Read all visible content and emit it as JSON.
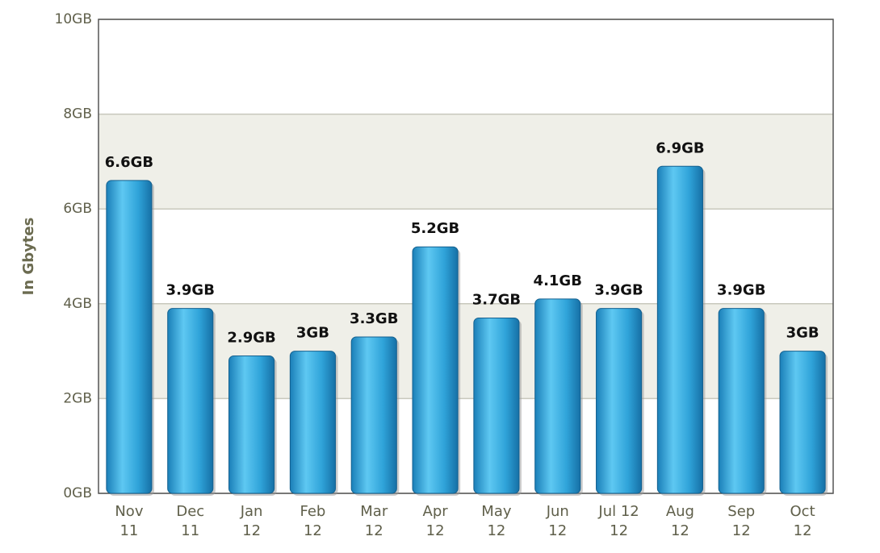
{
  "chart_data": {
    "type": "bar",
    "y_axis_label": "In Gbytes",
    "categories": [
      [
        "Nov",
        "11"
      ],
      [
        "Dec",
        "11"
      ],
      [
        "Jan",
        "12"
      ],
      [
        "Feb",
        "12"
      ],
      [
        "Mar",
        "12"
      ],
      [
        "Apr",
        "12"
      ],
      [
        "May",
        "12"
      ],
      [
        "Jun",
        "12"
      ],
      [
        "Jul 12",
        "12"
      ],
      [
        "Aug",
        "12"
      ],
      [
        "Sep",
        "12"
      ],
      [
        "Oct",
        "12"
      ]
    ],
    "values": [
      6.6,
      3.9,
      2.9,
      3,
      3.3,
      5.2,
      3.7,
      4.1,
      3.9,
      6.9,
      3.9,
      3
    ],
    "value_labels": [
      "6.6GB",
      "3.9GB",
      "2.9GB",
      "3GB",
      "3.3GB",
      "5.2GB",
      "3.7GB",
      "4.1GB",
      "3.9GB",
      "6.9GB",
      "3.9GB",
      "3GB"
    ],
    "color": "#2fa3d9",
    "ylim": [
      0,
      10
    ],
    "yticks": [
      {
        "value": 0,
        "label": "0GB"
      },
      {
        "value": 2,
        "label": "2GB"
      },
      {
        "value": 4,
        "label": "4GB"
      },
      {
        "value": 6,
        "label": "6GB"
      },
      {
        "value": 8,
        "label": "8GB"
      },
      {
        "value": 10,
        "label": "10GB"
      }
    ],
    "grid": true
  }
}
